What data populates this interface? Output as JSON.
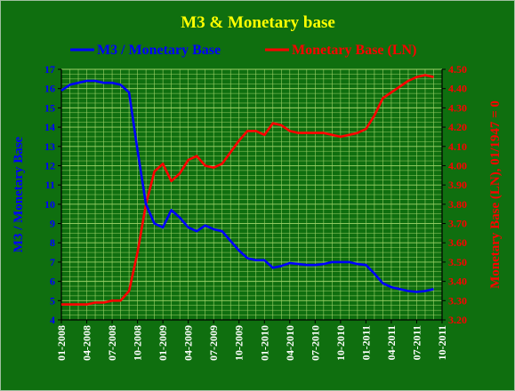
{
  "chart_data": {
    "type": "line",
    "title": "M3 & Monetary base",
    "legend_position": "top",
    "grid": true,
    "colors": {
      "background": "#0f6f0f",
      "grid": "#9fd36a",
      "title": "#ffff00",
      "left_series": "#0000ff",
      "right_series": "#ff0000"
    },
    "x_ticks": [
      "01-2008",
      "04-2008",
      "07-2008",
      "10-2008",
      "01-2009",
      "04-2009",
      "07-2009",
      "10-2009",
      "01-2010",
      "04-2010",
      "07-2010",
      "10-2010",
      "01-2011",
      "04-2011",
      "07-2011",
      "10-2011"
    ],
    "x_range": [
      "2008-01",
      "2011-10"
    ],
    "y_left": {
      "label": "M3  / Monetary Base",
      "range": [
        4,
        17
      ],
      "ticks": [
        "4",
        "5",
        "6",
        "7",
        "8",
        "9",
        "10",
        "11",
        "12",
        "13",
        "14",
        "15",
        "16",
        "17"
      ]
    },
    "y_right": {
      "label": "Monetary Base (LN), 01/1947 = 0",
      "range": [
        3.2,
        4.5
      ],
      "ticks": [
        "3.20",
        "3.30",
        "3.40",
        "3.50",
        "3.60",
        "3.70",
        "3.80",
        "3.90",
        "4.00",
        "4.10",
        "4.20",
        "4.30",
        "4.40",
        "4.50"
      ]
    },
    "series": [
      {
        "name": "M3 / Monetary Base",
        "axis": "left",
        "points": [
          [
            "2008-01",
            15.9
          ],
          [
            "2008-02",
            16.2
          ],
          [
            "2008-03",
            16.3
          ],
          [
            "2008-04",
            16.4
          ],
          [
            "2008-05",
            16.4
          ],
          [
            "2008-06",
            16.3
          ],
          [
            "2008-07",
            16.3
          ],
          [
            "2008-08",
            16.2
          ],
          [
            "2008-09",
            15.8
          ],
          [
            "2008-10",
            12.8
          ],
          [
            "2008-11",
            10.0
          ],
          [
            "2008-12",
            9.0
          ],
          [
            "2009-01",
            8.8
          ],
          [
            "2009-02",
            9.7
          ],
          [
            "2009-03",
            9.3
          ],
          [
            "2009-04",
            8.8
          ],
          [
            "2009-05",
            8.6
          ],
          [
            "2009-06",
            8.9
          ],
          [
            "2009-07",
            8.7
          ],
          [
            "2009-08",
            8.6
          ],
          [
            "2009-09",
            8.1
          ],
          [
            "2009-10",
            7.6
          ],
          [
            "2009-11",
            7.2
          ],
          [
            "2009-12",
            7.1
          ],
          [
            "2010-01",
            7.1
          ],
          [
            "2010-02",
            6.7
          ],
          [
            "2010-03",
            6.8
          ],
          [
            "2010-04",
            6.95
          ],
          [
            "2010-05",
            6.9
          ],
          [
            "2010-06",
            6.85
          ],
          [
            "2010-07",
            6.85
          ],
          [
            "2010-08",
            6.9
          ],
          [
            "2010-09",
            7.0
          ],
          [
            "2010-10",
            7.0
          ],
          [
            "2010-11",
            7.0
          ],
          [
            "2010-12",
            6.9
          ],
          [
            "2011-01",
            6.85
          ],
          [
            "2011-02",
            6.4
          ],
          [
            "2011-03",
            5.9
          ],
          [
            "2011-04",
            5.7
          ],
          [
            "2011-05",
            5.6
          ],
          [
            "2011-06",
            5.5
          ],
          [
            "2011-07",
            5.45
          ],
          [
            "2011-08",
            5.5
          ],
          [
            "2011-09",
            5.6
          ]
        ]
      },
      {
        "name": "Monetary Base (LN)",
        "axis": "right",
        "points": [
          [
            "2008-01",
            3.28
          ],
          [
            "2008-02",
            3.28
          ],
          [
            "2008-03",
            3.28
          ],
          [
            "2008-04",
            3.28
          ],
          [
            "2008-05",
            3.29
          ],
          [
            "2008-06",
            3.29
          ],
          [
            "2008-07",
            3.3
          ],
          [
            "2008-08",
            3.3
          ],
          [
            "2008-09",
            3.35
          ],
          [
            "2008-10",
            3.55
          ],
          [
            "2008-11",
            3.8
          ],
          [
            "2008-12",
            3.97
          ],
          [
            "2009-01",
            4.01
          ],
          [
            "2009-02",
            3.92
          ],
          [
            "2009-03",
            3.96
          ],
          [
            "2009-04",
            4.03
          ],
          [
            "2009-05",
            4.05
          ],
          [
            "2009-06",
            4.0
          ],
          [
            "2009-07",
            3.99
          ],
          [
            "2009-08",
            4.01
          ],
          [
            "2009-09",
            4.07
          ],
          [
            "2009-10",
            4.13
          ],
          [
            "2009-11",
            4.18
          ],
          [
            "2009-12",
            4.18
          ],
          [
            "2010-01",
            4.16
          ],
          [
            "2010-02",
            4.22
          ],
          [
            "2010-03",
            4.21
          ],
          [
            "2010-04",
            4.18
          ],
          [
            "2010-05",
            4.17
          ],
          [
            "2010-06",
            4.17
          ],
          [
            "2010-07",
            4.17
          ],
          [
            "2010-08",
            4.17
          ],
          [
            "2010-09",
            4.16
          ],
          [
            "2010-10",
            4.15
          ],
          [
            "2010-11",
            4.16
          ],
          [
            "2010-12",
            4.17
          ],
          [
            "2011-01",
            4.19
          ],
          [
            "2011-02",
            4.26
          ],
          [
            "2011-03",
            4.35
          ],
          [
            "2011-04",
            4.38
          ],
          [
            "2011-05",
            4.41
          ],
          [
            "2011-06",
            4.44
          ],
          [
            "2011-07",
            4.46
          ],
          [
            "2011-08",
            4.47
          ],
          [
            "2011-09",
            4.46
          ]
        ]
      }
    ]
  }
}
